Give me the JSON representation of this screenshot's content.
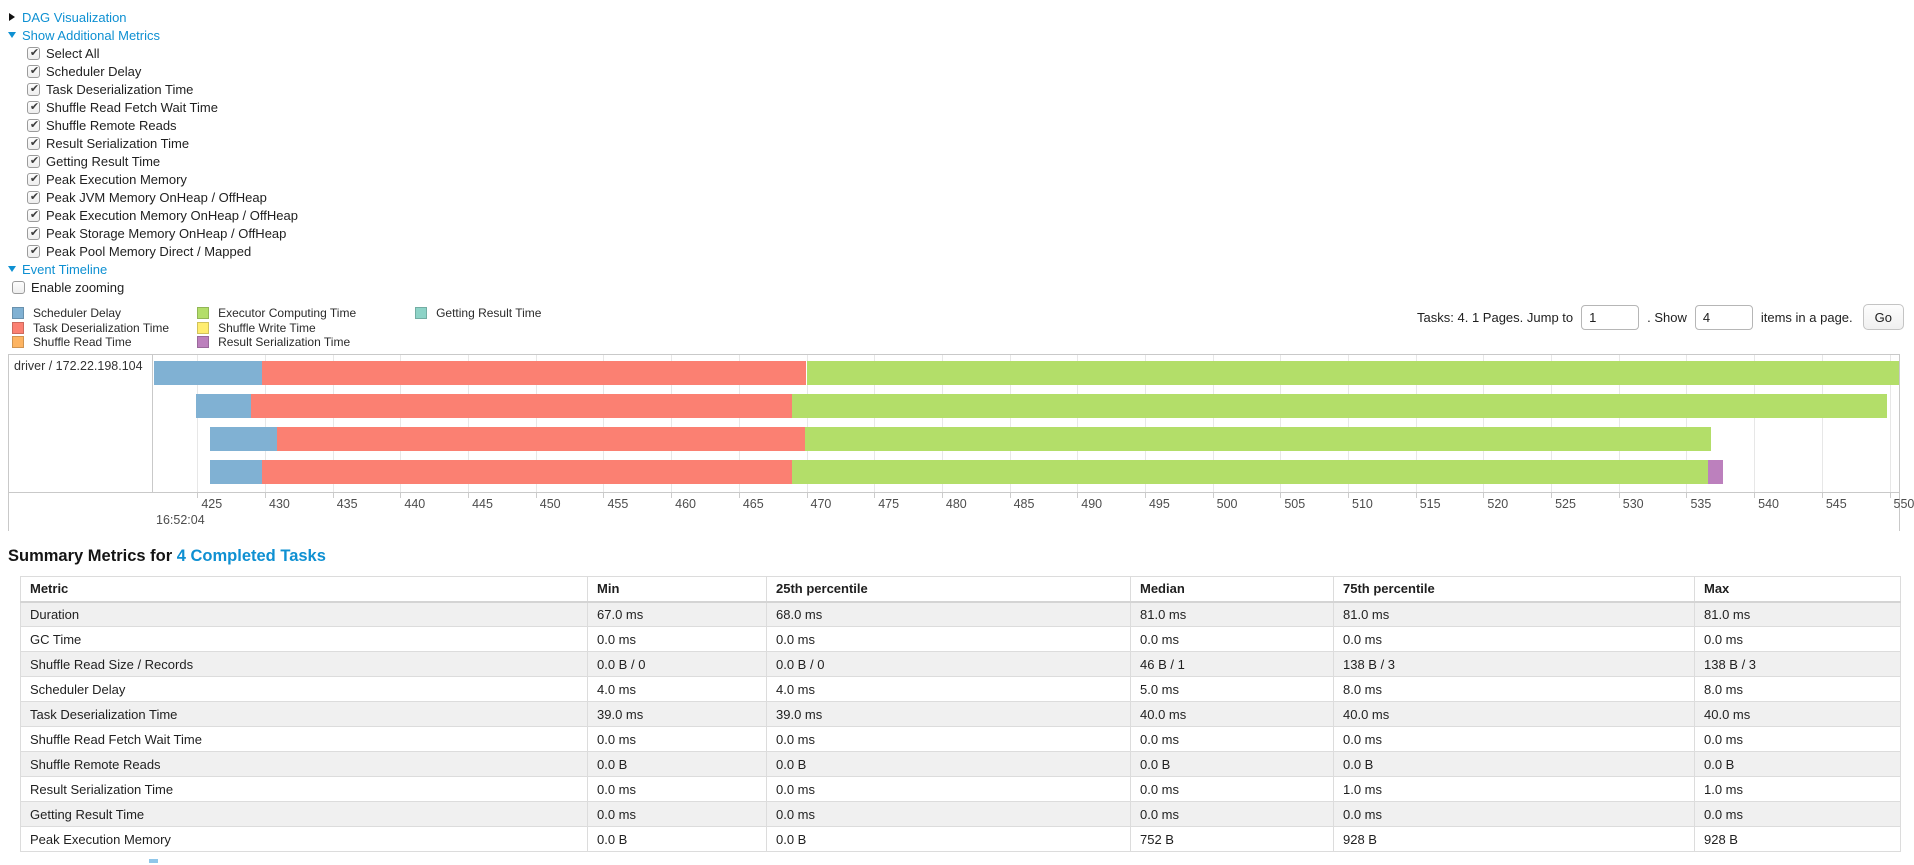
{
  "colors": {
    "link": "#0e90d2",
    "scheduler_delay": "#80B1D3",
    "deserialization": "#FB8072",
    "shuffle_read": "#FDB462",
    "computing": "#B3DE69",
    "shuffle_write": "#FFED6F",
    "serialization": "#BC80BD",
    "getting_result": "#8DD3C7"
  },
  "toggles": {
    "dag_label": "DAG Visualization",
    "metrics_label": "Show Additional Metrics",
    "event_timeline_label": "Event Timeline",
    "enable_zooming": {
      "label": "Enable zooming",
      "checked": false
    },
    "metric_checkboxes": [
      {
        "label": "Select All",
        "checked": true
      },
      {
        "label": "Scheduler Delay",
        "checked": true
      },
      {
        "label": "Task Deserialization Time",
        "checked": true
      },
      {
        "label": "Shuffle Read Fetch Wait Time",
        "checked": true
      },
      {
        "label": "Shuffle Remote Reads",
        "checked": true
      },
      {
        "label": "Result Serialization Time",
        "checked": true
      },
      {
        "label": "Getting Result Time",
        "checked": true
      },
      {
        "label": "Peak Execution Memory",
        "checked": true
      },
      {
        "label": "Peak JVM Memory OnHeap / OffHeap",
        "checked": true
      },
      {
        "label": "Peak Execution Memory OnHeap / OffHeap",
        "checked": true
      },
      {
        "label": "Peak Storage Memory OnHeap / OffHeap",
        "checked": true
      },
      {
        "label": "Peak Pool Memory Direct / Mapped",
        "checked": true
      }
    ]
  },
  "legend": {
    "columns": [
      [
        {
          "label": "Scheduler Delay",
          "color": "#80B1D3"
        },
        {
          "label": "Task Deserialization Time",
          "color": "#FB8072"
        },
        {
          "label": "Shuffle Read Time",
          "color": "#FDB462"
        }
      ],
      [
        {
          "label": "Executor Computing Time",
          "color": "#B3DE69"
        },
        {
          "label": "Shuffle Write Time",
          "color": "#FFED6F"
        },
        {
          "label": "Result Serialization Time",
          "color": "#BC80BD"
        }
      ],
      [
        {
          "label": "Getting Result Time",
          "color": "#8DD3C7"
        }
      ]
    ]
  },
  "pagination": {
    "prefix_text": "Tasks: 4. 1 Pages. Jump to",
    "jump_value": "1",
    "show_text": ". Show",
    "show_value": "4",
    "suffix_text": "items in a page.",
    "go_label": "Go"
  },
  "chart_data": {
    "type": "timeline",
    "group_label": "driver / 172.22.198.104",
    "x_axis": {
      "min": 421.8,
      "max": 550.7,
      "tick_start": 425,
      "tick_end": 550,
      "tick_step": 5,
      "base_time": "16:52:04",
      "unit": "ms within 16:52:04"
    },
    "tasks": [
      {
        "segments": [
          {
            "type": "scheduler_delay",
            "start": 421.8,
            "end": 429.8
          },
          {
            "type": "deserialization",
            "start": 429.8,
            "end": 470.0
          },
          {
            "type": "computing",
            "start": 470.0,
            "end": 550.7
          }
        ]
      },
      {
        "segments": [
          {
            "type": "scheduler_delay",
            "start": 424.9,
            "end": 429.0
          },
          {
            "type": "deserialization",
            "start": 429.0,
            "end": 468.9
          },
          {
            "type": "computing",
            "start": 468.9,
            "end": 549.8
          }
        ]
      },
      {
        "segments": [
          {
            "type": "scheduler_delay",
            "start": 425.9,
            "end": 430.9
          },
          {
            "type": "deserialization",
            "start": 430.9,
            "end": 469.9
          },
          {
            "type": "computing",
            "start": 469.9,
            "end": 536.8
          }
        ]
      },
      {
        "segments": [
          {
            "type": "scheduler_delay",
            "start": 425.9,
            "end": 429.8
          },
          {
            "type": "deserialization",
            "start": 429.8,
            "end": 468.9
          },
          {
            "type": "computing",
            "start": 468.9,
            "end": 536.6
          },
          {
            "type": "serialization",
            "start": 536.6,
            "end": 537.7
          }
        ]
      }
    ]
  },
  "summary": {
    "title_prefix": "Summary Metrics for ",
    "title_link": "4 Completed Tasks",
    "table": {
      "headers": [
        "Metric",
        "Min",
        "25th percentile",
        "Median",
        "75th percentile",
        "Max"
      ],
      "rows": [
        {
          "metric": "Duration",
          "values": [
            "67.0 ms",
            "68.0 ms",
            "81.0 ms",
            "81.0 ms",
            "81.0 ms"
          ]
        },
        {
          "metric": "GC Time",
          "values": [
            "0.0 ms",
            "0.0 ms",
            "0.0 ms",
            "0.0 ms",
            "0.0 ms"
          ]
        },
        {
          "metric": "Shuffle Read Size / Records",
          "values": [
            "0.0 B / 0",
            "0.0 B / 0",
            "46 B / 1",
            "138 B / 3",
            "138 B / 3"
          ]
        },
        {
          "metric": "Scheduler Delay",
          "values": [
            "4.0 ms",
            "4.0 ms",
            "5.0 ms",
            "8.0 ms",
            "8.0 ms"
          ]
        },
        {
          "metric": "Task Deserialization Time",
          "values": [
            "39.0 ms",
            "39.0 ms",
            "40.0 ms",
            "40.0 ms",
            "40.0 ms"
          ]
        },
        {
          "metric": "Shuffle Read Fetch Wait Time",
          "values": [
            "0.0 ms",
            "0.0 ms",
            "0.0 ms",
            "0.0 ms",
            "0.0 ms"
          ]
        },
        {
          "metric": "Shuffle Remote Reads",
          "values": [
            "0.0 B",
            "0.0 B",
            "0.0 B",
            "0.0 B",
            "0.0 B"
          ]
        },
        {
          "metric": "Result Serialization Time",
          "values": [
            "0.0 ms",
            "0.0 ms",
            "0.0 ms",
            "1.0 ms",
            "1.0 ms"
          ]
        },
        {
          "metric": "Getting Result Time",
          "values": [
            "0.0 ms",
            "0.0 ms",
            "0.0 ms",
            "0.0 ms",
            "0.0 ms"
          ]
        },
        {
          "metric": "Peak Execution Memory",
          "values": [
            "0.0 B",
            "0.0 B",
            "752 B",
            "928 B",
            "928 B"
          ]
        }
      ]
    }
  }
}
